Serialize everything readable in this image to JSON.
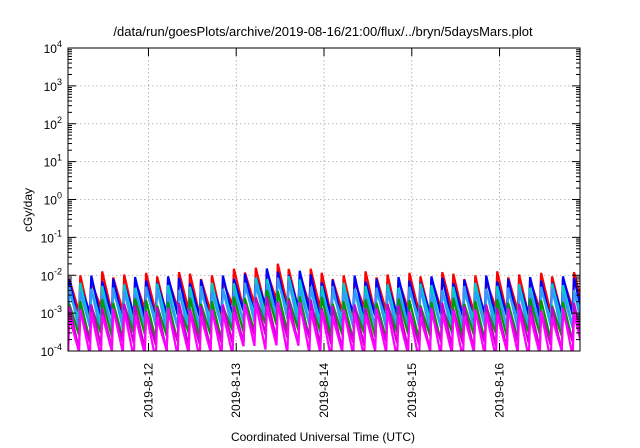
{
  "chart_data": {
    "type": "line",
    "title": "/data/run/goesPlots/archive/2019-08-16/21:00/flux/../bryn/5daysMars.plot",
    "xlabel": "Coordinated Universal Time (UTC)",
    "ylabel": "cGy/day",
    "xlim": [
      "2019-08-11 02:00",
      "2019-08-16 22:00"
    ],
    "x_ticks": [
      "2019-8-12",
      "2019-8-13",
      "2019-8-14",
      "2019-8-15",
      "2019-8-16"
    ],
    "yscale": "log",
    "ylim": [
      0.0001,
      10000
    ],
    "y_tick_labels": [
      {
        "base": "10",
        "exp": "-4"
      },
      {
        "base": "10",
        "exp": "-3"
      },
      {
        "base": "10",
        "exp": "-2"
      },
      {
        "base": "10",
        "exp": "-1"
      },
      {
        "base": "10",
        "exp": "0"
      },
      {
        "base": "10",
        "exp": "1"
      },
      {
        "base": "10",
        "exp": "2"
      },
      {
        "base": "10",
        "exp": "3"
      },
      {
        "base": "10",
        "exp": "4"
      }
    ],
    "grid": true,
    "sawtooth_period_hours": 3,
    "series": [
      {
        "color": "#ff0000",
        "peak": 0.011,
        "trough": 0.0012
      },
      {
        "color": "#0000ff",
        "peak": 0.0085,
        "trough": 0.0009
      },
      {
        "color": "#00cccc",
        "peak": 0.0055,
        "trough": 0.0006
      },
      {
        "color": "#3399ff",
        "peak": 0.0045,
        "trough": 0.00045
      },
      {
        "color": "#009900",
        "peak": 0.0022,
        "trough": 0.00028
      },
      {
        "color": "#cc00cc",
        "peak": 0.0016,
        "trough": 0.00016
      },
      {
        "color": "#ff00ff",
        "peak": 0.0012,
        "trough": 9e-05
      }
    ]
  }
}
